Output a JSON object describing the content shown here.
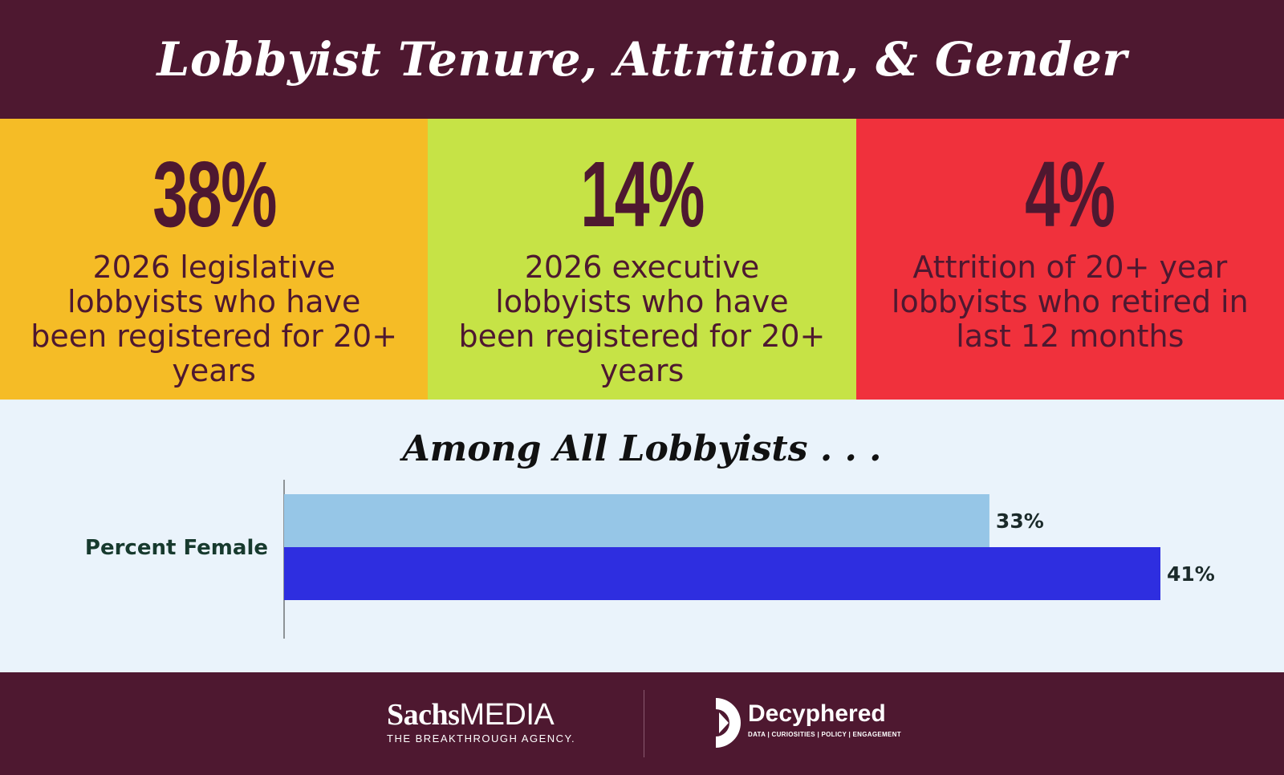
{
  "title": "Lobbyist Tenure, Attrition, & Gender",
  "stats": [
    {
      "value": "38%",
      "description": "2026 legislative lobbyists who have been registered for 20+ years",
      "color": "#f5bc26"
    },
    {
      "value": "14%",
      "description": "2026 executive lobbyists who have been registered for 20+ years",
      "color": "#c6e346"
    },
    {
      "value": "4%",
      "description": "Attrition of 20+ year lobbyists who retired in last 12 months",
      "color": "#f0313c"
    }
  ],
  "chart_data": {
    "type": "bar",
    "orientation": "horizontal",
    "title": "Among All Lobbyists . . .",
    "categories": [
      "Percent Female"
    ],
    "series": [
      {
        "name": "series-1",
        "values": [
          33
        ],
        "label": "33%",
        "color": "#96c6e7"
      },
      {
        "name": "series-2",
        "values": [
          41
        ],
        "label": "41%",
        "color": "#2e2ee0"
      }
    ],
    "xlim": [
      0,
      41
    ],
    "xlabel": "",
    "ylabel": ""
  },
  "footer": {
    "sachs_bold": "Sachs",
    "sachs_light": "MEDIA",
    "sachs_tagline": "THE BREAKTHROUGH AGENCY.",
    "decyphered_name": "Decyphered",
    "decyphered_tagline": "DATA | CURIOSITIES | POLICY | ENGAGEMENT"
  },
  "colors": {
    "maroon": "#4e1830",
    "panel": "#eaf3fb"
  }
}
